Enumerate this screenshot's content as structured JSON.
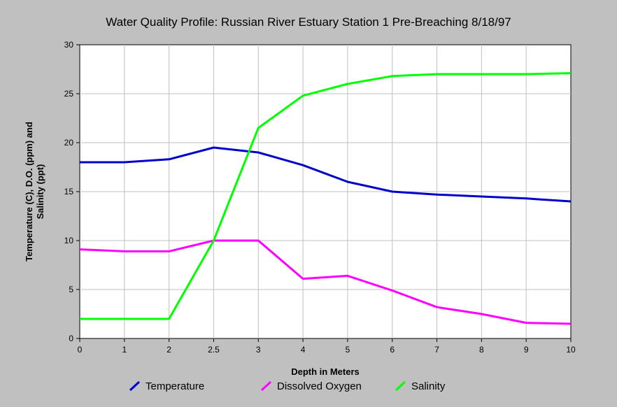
{
  "chart_data": {
    "type": "line",
    "title": "Water Quality Profile: Russian River Estuary Station 1 Pre-Breaching 8/18/97",
    "xlabel": "Depth in Meters",
    "ylabel_line1": "Temperature (C), D.O. (ppm) and",
    "ylabel_line2": "Salinity (ppt)",
    "x_categories": [
      "0",
      "1",
      "2",
      "2.5",
      "3",
      "4",
      "5",
      "6",
      "7",
      "8",
      "9",
      "10"
    ],
    "ylim": [
      0,
      30
    ],
    "y_ticks": [
      "0",
      "5",
      "10",
      "15",
      "20",
      "25",
      "30"
    ],
    "grid": true,
    "legend_position": "bottom",
    "series": [
      {
        "name": "Temperature",
        "color": "#0000cc",
        "values": [
          18.0,
          18.0,
          18.3,
          19.5,
          19.0,
          17.7,
          16.0,
          15.0,
          14.7,
          14.5,
          14.3,
          14.0
        ]
      },
      {
        "name": "Dissolved Oxygen",
        "color": "#ff00ff",
        "values": [
          9.1,
          8.9,
          8.9,
          10.0,
          10.0,
          6.1,
          6.4,
          4.9,
          3.2,
          2.5,
          1.6,
          1.5
        ]
      },
      {
        "name": "Salinity",
        "color": "#00ff00",
        "values": [
          2.0,
          2.0,
          2.0,
          10.0,
          21.5,
          24.8,
          26.0,
          26.8,
          27.0,
          27.0,
          27.0,
          27.1
        ]
      }
    ]
  }
}
